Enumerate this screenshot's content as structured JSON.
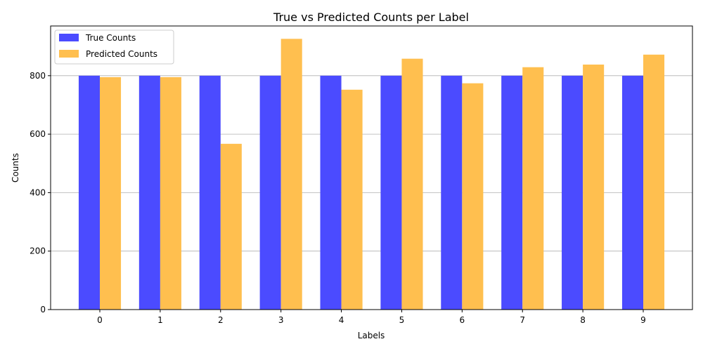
{
  "chart_data": {
    "type": "bar",
    "title": "True vs Predicted Counts per Label",
    "xlabel": "Labels",
    "ylabel": "Counts",
    "categories": [
      "0",
      "1",
      "2",
      "3",
      "4",
      "5",
      "6",
      "7",
      "8",
      "9"
    ],
    "series": [
      {
        "name": "True Counts",
        "color": "#4b4bff",
        "values": [
          800,
          800,
          800,
          800,
          800,
          800,
          800,
          800,
          800,
          800
        ]
      },
      {
        "name": "Predicted Counts",
        "color": "#ffbf4f",
        "values": [
          795,
          795,
          567,
          926,
          752,
          858,
          774,
          829,
          838,
          872
        ]
      }
    ],
    "ylim": [
      0,
      970
    ],
    "yticks": [
      "0",
      "200",
      "400",
      "600",
      "800"
    ],
    "grid": "y-axis",
    "legend": "top-left"
  }
}
